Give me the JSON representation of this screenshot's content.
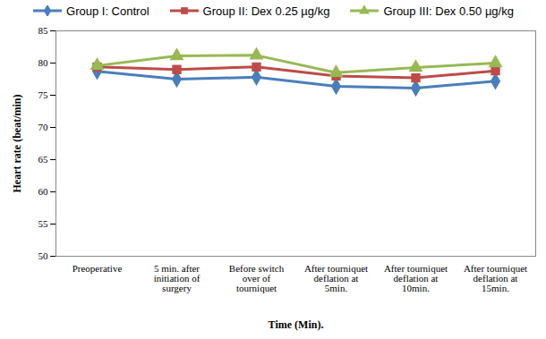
{
  "chart_data": {
    "type": "line",
    "x_label": "Time (Min).",
    "y_label": "Heart rate (beat/min)",
    "categories": [
      "Preoperative",
      "5 min. after\ninitiation of\nsurgery",
      "Before switch\nover of\ntourniquet",
      "After tourniquet\ndeflation at\n5min.",
      "After tourniquet\ndeflation at\n10min.",
      "After tourniquet\ndeflation at\n15min."
    ],
    "series": [
      {
        "name": "Group I: Control",
        "color": "#4a7ebb",
        "marker": "diamond",
        "values": [
          78.7,
          77.5,
          77.8,
          76.4,
          76.1,
          77.2
        ]
      },
      {
        "name": "Group II: Dex 0.25 µg/kg",
        "color": "#be4b48",
        "marker": "square",
        "values": [
          79.4,
          79.0,
          79.4,
          78.0,
          77.7,
          78.8
        ]
      },
      {
        "name": "Group III: Dex 0.50 µg/kg",
        "color": "#98b954",
        "marker": "triangle",
        "values": [
          79.6,
          81.1,
          81.2,
          78.5,
          79.3,
          80.0
        ]
      }
    ],
    "ylim": [
      50,
      85
    ],
    "yticks": [
      50,
      55,
      60,
      65,
      70,
      75,
      80,
      85
    ],
    "grid": false,
    "legend": "top"
  }
}
